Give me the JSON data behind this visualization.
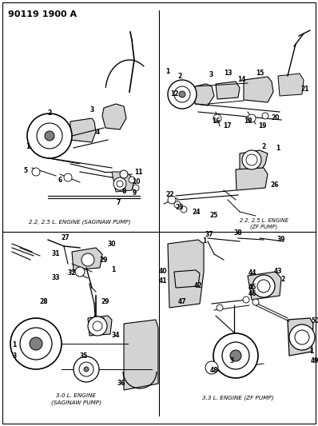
{
  "title": "90119 1900 A",
  "bg": "#f5f5f0",
  "figsize": [
    3.98,
    5.33
  ],
  "dpi": 100,
  "labels": {
    "tl_caption": "2.2, 2.5 L. ENGINE (SAGINAW PUMP)",
    "bl_caption1": "3.0 L. ENGINE",
    "bl_caption2": "(SAGINAW PUMP)",
    "tr_top_caption1": "2.2, 2.5 L. ENGINE",
    "tr_top_caption2": "(ZF PUMP)",
    "br_caption": "3.3 L. ENGINE (ZF PUMP)"
  }
}
